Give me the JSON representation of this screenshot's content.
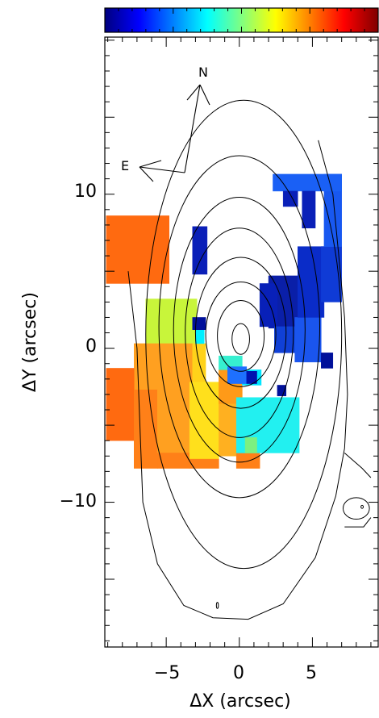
{
  "chart_data": {
    "type": "heatmap",
    "title": "",
    "xlabel": "ΔX (arcsec)",
    "ylabel": "ΔY (arcsec)",
    "xlim": [
      -9.2,
      9.5
    ],
    "ylim": [
      -19.4,
      20.2
    ],
    "xticks": [
      -5,
      0,
      5
    ],
    "yticks": [
      -10,
      0,
      10
    ],
    "xtick_labels": [
      "−5",
      "0",
      "5"
    ],
    "ytick_labels": [
      "−10",
      "0",
      "10"
    ],
    "colorbar": {
      "colormap": "jet",
      "position": "top",
      "stops": [
        "#00007f",
        "#0000ff",
        "#0080ff",
        "#00ffff",
        "#80ff80",
        "#ffff00",
        "#ff8000",
        "#ff0000",
        "#7f0000"
      ]
    },
    "compass": {
      "north_label": "N",
      "east_label": "E"
    },
    "cells": [
      {
        "x0": -9.1,
        "x1": -4.8,
        "y0": 4.2,
        "y1": 8.6,
        "color": "#ff6a10"
      },
      {
        "x0": -6.4,
        "x1": -2.9,
        "y0": 0.3,
        "y1": 3.2,
        "color": "#c8f53a"
      },
      {
        "x0": -7.2,
        "x1": -3.2,
        "y0": -2.7,
        "y1": 0.3,
        "color": "#ffa020"
      },
      {
        "x0": -3.2,
        "x1": -2.3,
        "y0": -2.2,
        "y1": 0.3,
        "color": "#ffd21a"
      },
      {
        "x0": -9.1,
        "x1": -7.2,
        "y0": -6.0,
        "y1": -1.3,
        "color": "#ff6a10"
      },
      {
        "x0": -7.2,
        "x1": -5.6,
        "y0": -7.8,
        "y1": -2.7,
        "color": "#ff8018"
      },
      {
        "x0": -5.6,
        "x1": -3.4,
        "y0": -6.8,
        "y1": -2.7,
        "color": "#ffa020"
      },
      {
        "x0": -5.6,
        "x1": -3.4,
        "y0": -7.8,
        "y1": -6.8,
        "color": "#ff8018"
      },
      {
        "x0": -3.4,
        "x1": -1.4,
        "y0": -7.2,
        "y1": -2.2,
        "color": "#ffe01c"
      },
      {
        "x0": -1.4,
        "x1": -0.2,
        "y0": -7.0,
        "y1": -3.6,
        "color": "#ffb020"
      },
      {
        "x0": -1.4,
        "x1": 0.2,
        "y0": -3.6,
        "y1": -1.4,
        "color": "#ff9a18"
      },
      {
        "x0": -3.4,
        "x1": -1.4,
        "y0": -7.8,
        "y1": -7.2,
        "color": "#ff8018"
      },
      {
        "x0": -0.2,
        "x1": 1.4,
        "y0": -7.8,
        "y1": -6.4,
        "color": "#ff8018"
      },
      {
        "x0": 0.2,
        "x1": 1.5,
        "y0": -2.4,
        "y1": -1.4,
        "color": "#00e5ff"
      },
      {
        "x0": -1.4,
        "x1": 0.2,
        "y0": -1.4,
        "y1": -0.5,
        "color": "#36f0d0"
      },
      {
        "x0": -3.0,
        "x1": -2.4,
        "y0": 0.3,
        "y1": 1.2,
        "color": "#00f0ff"
      },
      {
        "x0": -3.2,
        "x1": -2.3,
        "y0": 1.2,
        "y1": 2.0,
        "color": "#00109a"
      },
      {
        "x0": -3.2,
        "x1": -2.2,
        "y0": 4.8,
        "y1": 7.9,
        "color": "#0a1fb8"
      },
      {
        "x0": -0.8,
        "x1": 0.5,
        "y0": -2.3,
        "y1": -1.2,
        "color": "#1e70ff"
      },
      {
        "x0": 0.5,
        "x1": 1.2,
        "y0": -2.3,
        "y1": -1.5,
        "color": "#0012b0"
      },
      {
        "x0": -0.2,
        "x1": 4.1,
        "y0": -6.8,
        "y1": -3.2,
        "color": "#22f0f0"
      },
      {
        "x0": 0.4,
        "x1": 1.2,
        "y0": -6.8,
        "y1": -5.8,
        "color": "#7cf080"
      },
      {
        "x0": 2.6,
        "x1": 3.2,
        "y0": -3.1,
        "y1": -2.4,
        "color": "#00109a"
      },
      {
        "x0": 2.0,
        "x1": 4.0,
        "y0": 1.3,
        "y1": 4.7,
        "color": "#0a1fa8"
      },
      {
        "x0": 1.4,
        "x1": 2.6,
        "y0": 1.4,
        "y1": 4.2,
        "color": "#0820b8"
      },
      {
        "x0": 2.4,
        "x1": 3.8,
        "y0": -0.3,
        "y1": 1.4,
        "color": "#1040d6"
      },
      {
        "x0": 3.8,
        "x1": 5.6,
        "y0": -0.9,
        "y1": 2.0,
        "color": "#1a55ee"
      },
      {
        "x0": 4.0,
        "x1": 5.8,
        "y0": 2.0,
        "y1": 6.6,
        "color": "#0a2cc8"
      },
      {
        "x0": 5.6,
        "x1": 6.4,
        "y0": -1.3,
        "y1": -0.3,
        "color": "#00109a"
      },
      {
        "x0": 5.6,
        "x1": 7.0,
        "y0": 3.0,
        "y1": 6.6,
        "color": "#0f3bd6"
      },
      {
        "x0": 5.8,
        "x1": 7.0,
        "y0": 6.6,
        "y1": 11.3,
        "color": "#1858f0"
      },
      {
        "x0": 2.3,
        "x1": 7.0,
        "y0": 10.2,
        "y1": 11.3,
        "color": "#1a60f5"
      },
      {
        "x0": 3.0,
        "x1": 4.0,
        "y0": 9.2,
        "y1": 10.2,
        "color": "#0a20b8"
      },
      {
        "x0": 4.3,
        "x1": 5.2,
        "y0": 7.8,
        "y1": 10.2,
        "color": "#0a20b8"
      }
    ],
    "contours": [
      {
        "cx": 0.1,
        "cy": 0.6,
        "rx": 0.6,
        "ry": 1.0
      },
      {
        "cx": 0.1,
        "cy": 0.8,
        "rx": 1.6,
        "ry": 2.3
      },
      {
        "cx": 0.1,
        "cy": 0.9,
        "rx": 2.4,
        "ry": 3.4
      },
      {
        "cx": 0.1,
        "cy": 1.0,
        "rx": 3.1,
        "ry": 4.9
      },
      {
        "cx": 0.0,
        "cy": 1.0,
        "rx": 3.7,
        "ry": 6.8
      },
      {
        "cx": 0.0,
        "cy": 1.2,
        "rx": 4.5,
        "ry": 8.6
      },
      {
        "cx": 0.0,
        "cy": 1.4,
        "rx": 5.5,
        "ry": 11.1
      },
      {
        "cx": 0.3,
        "cy": 0.9,
        "rx": 6.7,
        "ry": 15.2
      },
      {
        "cx": 8.0,
        "cy": -10.4,
        "rx": 0.9,
        "ry": 0.7
      },
      {
        "cx": 8.4,
        "cy": -10.3,
        "rx": 0.08,
        "ry": 0.1
      },
      {
        "cx": -1.5,
        "cy": -16.7,
        "rx": 0.07,
        "ry": 0.2
      }
    ],
    "outer_contours": [
      [
        [
          -7.6,
          5.0
        ],
        [
          -7.0,
          0.0
        ],
        [
          -6.8,
          -5.0
        ],
        [
          -6.6,
          -10.0
        ],
        [
          -5.6,
          -14.0
        ],
        [
          -3.8,
          -16.7
        ],
        [
          -1.8,
          -17.5
        ],
        [
          0.6,
          -17.6
        ],
        [
          3.0,
          -16.6
        ],
        [
          5.2,
          -13.6
        ],
        [
          6.6,
          -9.6
        ],
        [
          7.2,
          -6.5
        ],
        [
          7.4,
          -3.0
        ],
        [
          7.2,
          2.0
        ],
        [
          6.8,
          6.0
        ],
        [
          6.4,
          10.0
        ],
        [
          5.4,
          13.5
        ]
      ],
      [
        [
          7.2,
          -6.8
        ],
        [
          8.4,
          -7.8
        ],
        [
          9.0,
          -8.4
        ]
      ],
      [
        [
          9.0,
          -11.0
        ],
        [
          8.5,
          -11.6
        ],
        [
          7.2,
          -11.6
        ]
      ]
    ]
  }
}
